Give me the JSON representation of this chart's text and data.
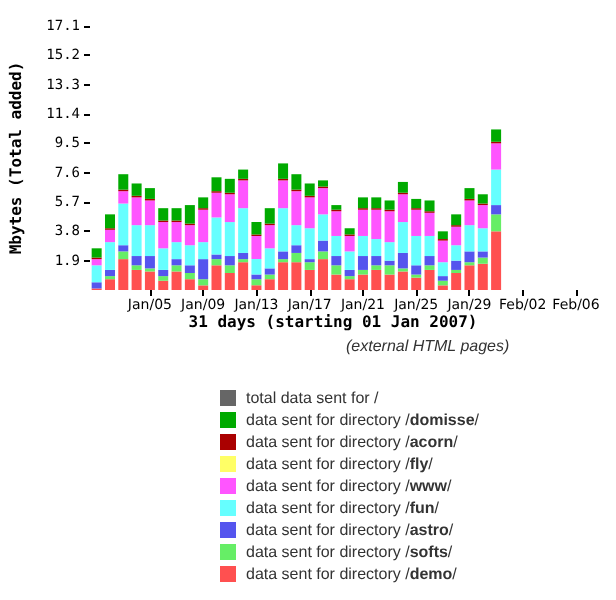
{
  "chart_data": {
    "type": "bar",
    "stacked": true,
    "xlabel": "31 days (starting 01 Jan 2007)",
    "ylabel": "Mbytes (Total added)",
    "subtitle": "(external HTML pages)",
    "x": [
      "2007-01-01",
      "2007-01-02",
      "2007-01-03",
      "2007-01-04",
      "2007-01-05",
      "2007-01-06",
      "2007-01-07",
      "2007-01-08",
      "2007-01-09",
      "2007-01-10",
      "2007-01-11",
      "2007-01-12",
      "2007-01-13",
      "2007-01-14",
      "2007-01-15",
      "2007-01-16",
      "2007-01-17",
      "2007-01-18",
      "2007-01-19",
      "2007-01-20",
      "2007-01-21",
      "2007-01-22",
      "2007-01-23",
      "2007-01-24",
      "2007-01-25",
      "2007-01-26",
      "2007-01-27",
      "2007-01-28",
      "2007-01-29",
      "2007-01-30",
      "2007-01-31"
    ],
    "xlim": [
      "2006-12-31T12:00",
      "2007-02-06"
    ],
    "xticks": [
      {
        "value": "2007-01-05",
        "label": "Jan/05"
      },
      {
        "value": "2007-01-09",
        "label": "Jan/09"
      },
      {
        "value": "2007-01-13",
        "label": "Jan/13"
      },
      {
        "value": "2007-01-17",
        "label": "Jan/17"
      },
      {
        "value": "2007-01-21",
        "label": "Jan/21"
      },
      {
        "value": "2007-01-25",
        "label": "Jan/25"
      },
      {
        "value": "2007-01-29",
        "label": "Jan/29"
      },
      {
        "value": "2007-02-02",
        "label": "Feb/02"
      },
      {
        "value": "2007-02-06",
        "label": "Feb/06"
      }
    ],
    "ylim": [
      0,
      17.1
    ],
    "yticks": [
      1.9,
      3.8,
      5.7,
      7.6,
      9.5,
      11.4,
      13.3,
      15.2,
      17.1
    ],
    "grid": false,
    "legend": "bottom",
    "series": [
      {
        "name": "data sent for directory /demo/",
        "color": "#ff5050",
        "values": [
          0.1,
          0.7,
          2.0,
          1.3,
          1.2,
          0.6,
          1.2,
          0.7,
          0.3,
          1.6,
          1.1,
          1.8,
          0.3,
          0.7,
          1.8,
          1.8,
          1.3,
          2.0,
          1.0,
          0.7,
          1.0,
          1.3,
          1.0,
          1.2,
          0.8,
          1.3,
          0.3,
          1.1,
          1.6,
          1.7,
          3.8
        ]
      },
      {
        "name": "data sent for directory /softs/",
        "color": "#66ee66",
        "values": [
          0,
          0.2,
          0.5,
          0.3,
          0.2,
          0.3,
          0.4,
          0.4,
          0.4,
          0.4,
          0.5,
          0.2,
          0.4,
          0.3,
          0.2,
          0.6,
          0.5,
          0.5,
          0.6,
          0.2,
          0.3,
          0.3,
          0.6,
          0.2,
          0.2,
          0.3,
          0.3,
          0.2,
          0.2,
          0.4,
          1.1
        ]
      },
      {
        "name": "data sent for directory /astro/",
        "color": "#5555ee",
        "values": [
          0.4,
          0.4,
          0.4,
          0.6,
          0.8,
          0.4,
          0.4,
          0.5,
          1.3,
          0.3,
          0.6,
          0.4,
          0.3,
          0.4,
          0.5,
          0.5,
          0.2,
          0.7,
          0.6,
          0.4,
          0.9,
          0.6,
          0.3,
          1.0,
          0.6,
          0.6,
          0.3,
          0.6,
          0.7,
          0.4,
          0.6
        ]
      },
      {
        "name": "data sent for directory /fun/",
        "color": "#66ffff",
        "values": [
          1.1,
          1.8,
          2.7,
          2.0,
          2.0,
          1.4,
          1.1,
          1.3,
          1.1,
          2.4,
          2.2,
          2.9,
          1.0,
          1.3,
          2.8,
          1.3,
          2.0,
          1.7,
          1.3,
          1.2,
          1.3,
          1.1,
          1.2,
          2.0,
          1.9,
          1.3,
          0.9,
          1.0,
          1.7,
          1.5,
          2.3
        ]
      },
      {
        "name": "data sent for directory /www/",
        "color": "#ff55ff",
        "values": [
          0.4,
          0.8,
          0.8,
          1.8,
          1.6,
          1.7,
          1.3,
          1.3,
          2.1,
          1.6,
          1.8,
          1.8,
          1.5,
          1.5,
          1.8,
          2.2,
          2.0,
          1.7,
          1.6,
          1.0,
          1.7,
          1.9,
          2.0,
          1.8,
          1.7,
          1.5,
          1.4,
          1.2,
          1.6,
          1.5,
          1.7
        ]
      },
      {
        "name": "data sent for directory /fly/",
        "color": "#ffff66",
        "values": [
          null,
          null,
          null,
          null,
          null,
          null,
          null,
          null,
          null,
          null,
          null,
          null,
          null,
          null,
          null,
          null,
          null,
          null,
          null,
          null,
          null,
          null,
          null,
          null,
          null,
          null,
          null,
          null,
          null,
          null,
          null
        ]
      },
      {
        "name": "data sent for directory /acorn/",
        "color": "#aa0000",
        "values": [
          0.1,
          0.1,
          0.1,
          0.1,
          0.1,
          0.1,
          0.1,
          0.1,
          0.1,
          0.1,
          0.1,
          0.1,
          0.1,
          0.1,
          0.1,
          0.1,
          0.1,
          0.1,
          0.1,
          0.1,
          0.1,
          0.1,
          0.1,
          0.1,
          0.1,
          0.1,
          0.1,
          0.1,
          0.1,
          0.1,
          0.1
        ]
      },
      {
        "name": "data sent for directory /domisse/",
        "color": "#00aa00",
        "values": [
          0.6,
          0.9,
          1.0,
          0.8,
          0.7,
          0.8,
          0.8,
          1.2,
          0.7,
          0.9,
          0.9,
          0.6,
          0.8,
          1.0,
          1.0,
          1.0,
          0.8,
          0.4,
          0.3,
          0.4,
          0.7,
          0.7,
          0.6,
          0.7,
          0.6,
          0.7,
          0.5,
          0.7,
          0.7,
          0.6,
          0.8
        ]
      },
      {
        "name": "total data sent for /",
        "color": "#666666",
        "values": [
          null,
          null,
          null,
          null,
          null,
          null,
          null,
          null,
          null,
          null,
          null,
          null,
          null,
          null,
          null,
          null,
          null,
          null,
          null,
          null,
          null,
          null,
          null,
          null,
          null,
          null,
          null,
          null,
          null,
          null,
          null
        ]
      }
    ]
  }
}
